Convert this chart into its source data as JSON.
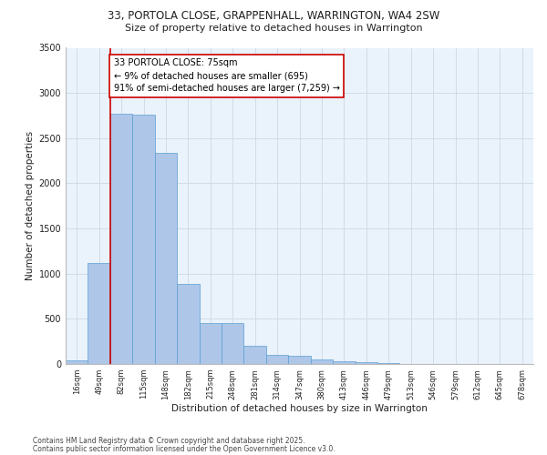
{
  "title_line1": "33, PORTOLA CLOSE, GRAPPENHALL, WARRINGTON, WA4 2SW",
  "title_line2": "Size of property relative to detached houses in Warrington",
  "xlabel": "Distribution of detached houses by size in Warrington",
  "ylabel": "Number of detached properties",
  "categories": [
    "16sqm",
    "49sqm",
    "82sqm",
    "115sqm",
    "148sqm",
    "182sqm",
    "215sqm",
    "248sqm",
    "281sqm",
    "314sqm",
    "347sqm",
    "380sqm",
    "413sqm",
    "446sqm",
    "479sqm",
    "513sqm",
    "546sqm",
    "579sqm",
    "612sqm",
    "645sqm",
    "678sqm"
  ],
  "values": [
    40,
    1120,
    2770,
    2760,
    2340,
    890,
    450,
    450,
    200,
    105,
    90,
    55,
    35,
    20,
    15,
    5,
    5,
    3,
    2,
    1,
    1
  ],
  "bar_color": "#aec6e8",
  "bar_edge_color": "#5a9fd4",
  "grid_color": "#d0dce8",
  "bg_color": "#eaf2fb",
  "vline_x_index": 1.5,
  "annotation_text": "33 PORTOLA CLOSE: 75sqm\n← 9% of detached houses are smaller (695)\n91% of semi-detached houses are larger (7,259) →",
  "annotation_box_color": "#ffffff",
  "annotation_border_color": "#cc0000",
  "vline_color": "#cc0000",
  "footer_line1": "Contains HM Land Registry data © Crown copyright and database right 2025.",
  "footer_line2": "Contains public sector information licensed under the Open Government Licence v3.0.",
  "ylim": [
    0,
    3500
  ],
  "yticks": [
    0,
    500,
    1000,
    1500,
    2000,
    2500,
    3000,
    3500
  ]
}
